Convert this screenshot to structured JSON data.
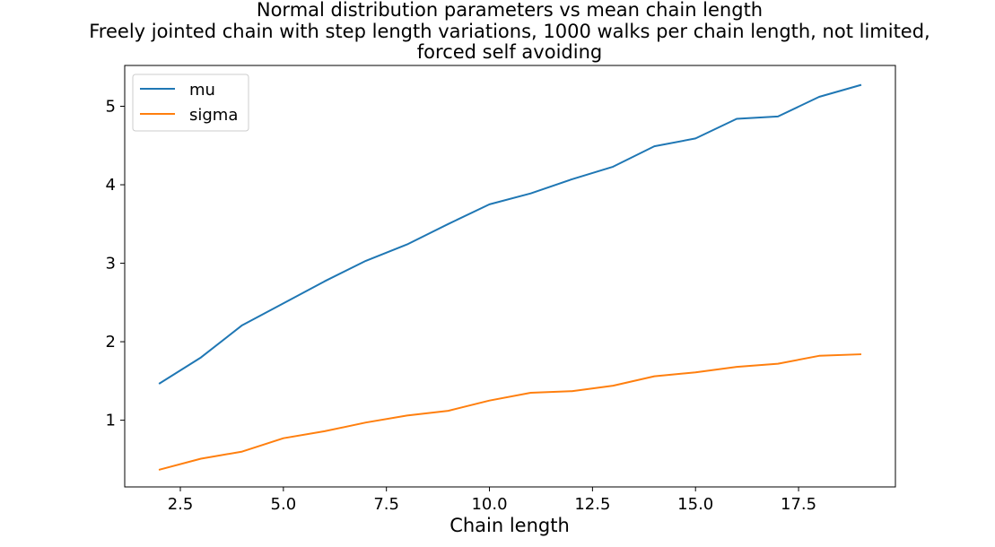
{
  "chart_data": {
    "type": "line",
    "title_lines": [
      "Normal distribution parameters vs mean chain length",
      "Freely jointed chain with step length variations, 1000 walks per chain length, not limited,",
      "forced self avoiding"
    ],
    "xlabel": "Chain length",
    "ylabel": "",
    "xlim": [
      1.15,
      19.85
    ],
    "ylim": [
      0.15,
      5.52
    ],
    "x_ticks": [
      2.5,
      5.0,
      7.5,
      10.0,
      12.5,
      15.0,
      17.5
    ],
    "x_tick_labels": [
      "2.5",
      "5.0",
      "7.5",
      "10.0",
      "12.5",
      "15.0",
      "17.5"
    ],
    "y_ticks": [
      1,
      2,
      3,
      4,
      5
    ],
    "y_tick_labels": [
      "1",
      "2",
      "3",
      "4",
      "5"
    ],
    "grid": false,
    "legend_position": "top-left",
    "x": [
      2,
      3,
      4,
      5,
      6,
      7,
      8,
      9,
      10,
      11,
      12,
      13,
      14,
      15,
      16,
      17,
      18,
      19
    ],
    "series": [
      {
        "name": "mu",
        "color": "#1f77b4",
        "values": [
          1.47,
          1.8,
          2.21,
          2.49,
          2.77,
          3.03,
          3.24,
          3.5,
          3.75,
          3.89,
          4.07,
          4.23,
          4.49,
          4.59,
          4.84,
          4.87,
          5.12,
          5.27
        ]
      },
      {
        "name": "sigma",
        "color": "#ff7f0e",
        "values": [
          0.37,
          0.51,
          0.6,
          0.77,
          0.86,
          0.97,
          1.06,
          1.12,
          1.25,
          1.35,
          1.37,
          1.44,
          1.56,
          1.61,
          1.68,
          1.72,
          1.82,
          1.84
        ]
      }
    ]
  }
}
